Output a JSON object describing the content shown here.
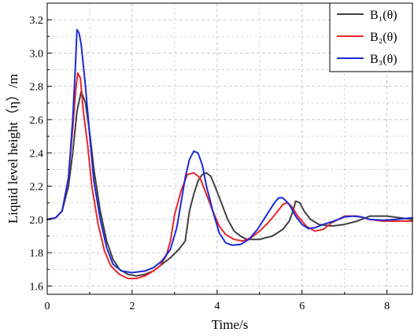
{
  "chart_data": {
    "type": "line",
    "xlabel": "Time/s",
    "ylabel": "Liquid level height（η）/m",
    "xlim": [
      0,
      8.6
    ],
    "ylim": [
      1.55,
      3.3
    ],
    "x_ticks": [
      0,
      2,
      4,
      6,
      8
    ],
    "y_ticks": [
      1.6,
      1.8,
      2.0,
      2.2,
      2.4,
      2.6,
      2.8,
      3.0,
      3.2
    ],
    "grid": "dashed",
    "legend_position": "top-right",
    "series": [
      {
        "name": "B₁(θ)",
        "color": "#404040",
        "points": [
          [
            0,
            2.0
          ],
          [
            0.2,
            2.01
          ],
          [
            0.35,
            2.05
          ],
          [
            0.5,
            2.2
          ],
          [
            0.6,
            2.4
          ],
          [
            0.7,
            2.65
          ],
          [
            0.8,
            2.77
          ],
          [
            0.9,
            2.7
          ],
          [
            1.0,
            2.52
          ],
          [
            1.1,
            2.3
          ],
          [
            1.25,
            2.05
          ],
          [
            1.4,
            1.87
          ],
          [
            1.55,
            1.76
          ],
          [
            1.7,
            1.7
          ],
          [
            1.9,
            1.67
          ],
          [
            2.1,
            1.66
          ],
          [
            2.3,
            1.67
          ],
          [
            2.5,
            1.69
          ],
          [
            2.7,
            1.73
          ],
          [
            2.9,
            1.77
          ],
          [
            3.1,
            1.82
          ],
          [
            3.25,
            1.87
          ],
          [
            3.35,
            2.05
          ],
          [
            3.45,
            2.15
          ],
          [
            3.55,
            2.23
          ],
          [
            3.65,
            2.27
          ],
          [
            3.75,
            2.28
          ],
          [
            3.85,
            2.26
          ],
          [
            3.95,
            2.2
          ],
          [
            4.1,
            2.1
          ],
          [
            4.25,
            2.0
          ],
          [
            4.4,
            1.93
          ],
          [
            4.55,
            1.9
          ],
          [
            4.7,
            1.88
          ],
          [
            5.0,
            1.88
          ],
          [
            5.3,
            1.9
          ],
          [
            5.55,
            1.94
          ],
          [
            5.7,
            1.99
          ],
          [
            5.8,
            2.06
          ],
          [
            5.85,
            2.11
          ],
          [
            5.95,
            2.1
          ],
          [
            6.05,
            2.05
          ],
          [
            6.2,
            2.0
          ],
          [
            6.4,
            1.97
          ],
          [
            6.7,
            1.96
          ],
          [
            7.0,
            1.97
          ],
          [
            7.3,
            1.99
          ],
          [
            7.6,
            2.02
          ],
          [
            8.0,
            2.02
          ],
          [
            8.3,
            2.01
          ],
          [
            8.6,
            2.0
          ]
        ]
      },
      {
        "name": "B₂(θ)",
        "color": "#e8262a",
        "points": [
          [
            0,
            2.0
          ],
          [
            0.2,
            2.01
          ],
          [
            0.35,
            2.05
          ],
          [
            0.5,
            2.25
          ],
          [
            0.6,
            2.55
          ],
          [
            0.68,
            2.8
          ],
          [
            0.72,
            2.88
          ],
          [
            0.78,
            2.85
          ],
          [
            0.85,
            2.65
          ],
          [
            0.95,
            2.45
          ],
          [
            1.05,
            2.2
          ],
          [
            1.2,
            1.97
          ],
          [
            1.35,
            1.81
          ],
          [
            1.5,
            1.72
          ],
          [
            1.7,
            1.67
          ],
          [
            1.9,
            1.645
          ],
          [
            2.1,
            1.645
          ],
          [
            2.3,
            1.66
          ],
          [
            2.5,
            1.69
          ],
          [
            2.65,
            1.72
          ],
          [
            2.8,
            1.78
          ],
          [
            2.9,
            1.87
          ],
          [
            3.0,
            2.03
          ],
          [
            3.15,
            2.17
          ],
          [
            3.3,
            2.27
          ],
          [
            3.45,
            2.28
          ],
          [
            3.6,
            2.25
          ],
          [
            3.75,
            2.15
          ],
          [
            3.9,
            2.05
          ],
          [
            4.05,
            1.96
          ],
          [
            4.2,
            1.91
          ],
          [
            4.4,
            1.88
          ],
          [
            4.6,
            1.87
          ],
          [
            4.8,
            1.89
          ],
          [
            5.0,
            1.93
          ],
          [
            5.2,
            1.98
          ],
          [
            5.4,
            2.04
          ],
          [
            5.55,
            2.09
          ],
          [
            5.65,
            2.1
          ],
          [
            5.75,
            2.08
          ],
          [
            5.9,
            2.02
          ],
          [
            6.1,
            1.96
          ],
          [
            6.3,
            1.93
          ],
          [
            6.5,
            1.94
          ],
          [
            6.7,
            1.98
          ],
          [
            7.0,
            2.02
          ],
          [
            7.3,
            2.02
          ],
          [
            7.6,
            2.0
          ],
          [
            7.9,
            1.99
          ],
          [
            8.2,
            1.99
          ],
          [
            8.6,
            1.99
          ]
        ]
      },
      {
        "name": "B₃(θ)",
        "color": "#1a2bd6",
        "points": [
          [
            0,
            2.0
          ],
          [
            0.2,
            2.01
          ],
          [
            0.35,
            2.05
          ],
          [
            0.5,
            2.25
          ],
          [
            0.6,
            2.6
          ],
          [
            0.66,
            2.9
          ],
          [
            0.7,
            3.14
          ],
          [
            0.75,
            3.12
          ],
          [
            0.8,
            3.05
          ],
          [
            0.9,
            2.8
          ],
          [
            1.0,
            2.5
          ],
          [
            1.1,
            2.23
          ],
          [
            1.25,
            2.0
          ],
          [
            1.4,
            1.83
          ],
          [
            1.55,
            1.73
          ],
          [
            1.75,
            1.69
          ],
          [
            2.0,
            1.68
          ],
          [
            2.3,
            1.69
          ],
          [
            2.5,
            1.71
          ],
          [
            2.7,
            1.75
          ],
          [
            2.9,
            1.82
          ],
          [
            3.05,
            1.95
          ],
          [
            3.15,
            2.1
          ],
          [
            3.25,
            2.25
          ],
          [
            3.35,
            2.36
          ],
          [
            3.45,
            2.41
          ],
          [
            3.55,
            2.4
          ],
          [
            3.65,
            2.33
          ],
          [
            3.75,
            2.2
          ],
          [
            3.9,
            2.05
          ],
          [
            4.05,
            1.92
          ],
          [
            4.2,
            1.86
          ],
          [
            4.35,
            1.845
          ],
          [
            4.55,
            1.85
          ],
          [
            4.75,
            1.88
          ],
          [
            4.95,
            1.94
          ],
          [
            5.15,
            2.02
          ],
          [
            5.35,
            2.1
          ],
          [
            5.45,
            2.13
          ],
          [
            5.55,
            2.13
          ],
          [
            5.7,
            2.09
          ],
          [
            5.85,
            2.02
          ],
          [
            6.0,
            1.97
          ],
          [
            6.15,
            1.945
          ],
          [
            6.3,
            1.95
          ],
          [
            6.5,
            1.97
          ],
          [
            6.75,
            1.99
          ],
          [
            7.0,
            2.015
          ],
          [
            7.2,
            2.02
          ],
          [
            7.4,
            2.015
          ],
          [
            7.6,
            2.0
          ],
          [
            7.9,
            1.995
          ],
          [
            8.2,
            2.0
          ],
          [
            8.6,
            2.01
          ]
        ]
      }
    ]
  }
}
